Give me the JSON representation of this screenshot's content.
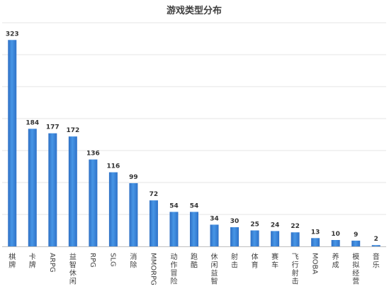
{
  "chart_data": {
    "type": "bar",
    "title": "游戏类型分布",
    "xlabel": "",
    "ylabel": "",
    "categories": [
      "棋牌",
      "卡牌",
      "ARPG",
      "益智休闲",
      "RPG",
      "SLG",
      "消除",
      "MMORPG",
      "动作冒险",
      "跑酷",
      "休闲益智",
      "射击",
      "体育",
      "赛车",
      "飞行射击",
      "MOBA",
      "养成",
      "模拟经营",
      "音乐"
    ],
    "vertical_categories": [
      "棋牌",
      "卡牌",
      "益智休闲",
      "消除",
      "动作冒险",
      "跑酷",
      "休闲益智",
      "射击",
      "体育",
      "赛车",
      "飞行射击",
      "养成",
      "模拟经营",
      "音乐"
    ],
    "series": [
      {
        "values": [
          323,
          184,
          177,
          172,
          136,
          116,
          99,
          72,
          54,
          54,
          34,
          30,
          25,
          24,
          22,
          13,
          10,
          9,
          2
        ]
      }
    ],
    "ylim": [
      0,
      350
    ],
    "ytick_step": 50,
    "grid": true,
    "legend": "none",
    "data_labels": true,
    "colors": {
      "bar_dark": "#2E6FC4",
      "bar_mid": "#3E8DE0",
      "bar_light": "#62A9EE",
      "label_text": "#333333",
      "title_text": "#404040"
    }
  }
}
